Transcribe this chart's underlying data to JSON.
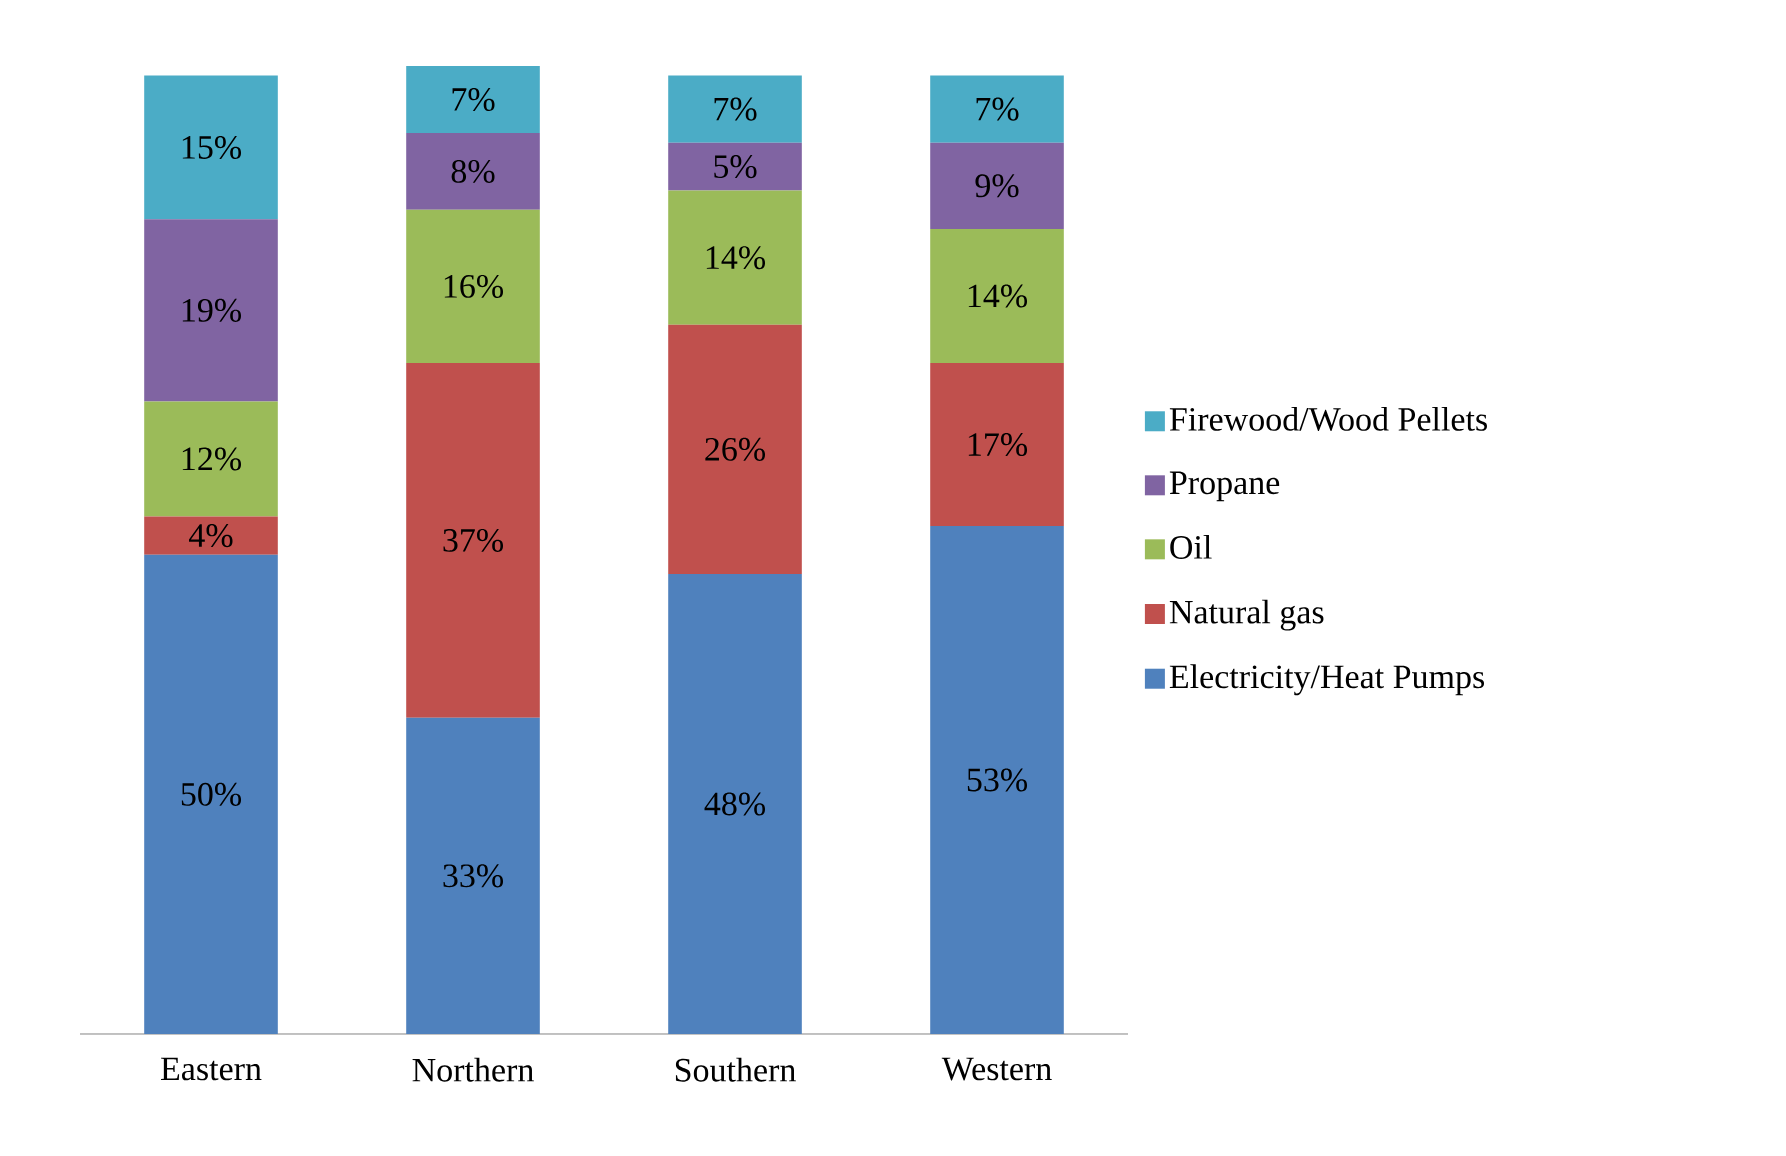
{
  "chart_data": {
    "type": "bar",
    "stacked": true,
    "legend": "right",
    "categories": [
      "Eastern",
      "Northern",
      "Southern",
      "Western"
    ],
    "series": [
      {
        "name": "Electricity/Heat Pumps",
        "color": "#4f81bd",
        "values": [
          50,
          33,
          48,
          53
        ],
        "value_labels": [
          "50%",
          "33%",
          "48%",
          "53%"
        ]
      },
      {
        "name": "Natural gas",
        "color": "#c0504d",
        "values": [
          4,
          37,
          26,
          17
        ],
        "value_labels": [
          "4%",
          "37%",
          "26%",
          "17%"
        ]
      },
      {
        "name": "Oil",
        "color": "#9bbb59",
        "values": [
          12,
          16,
          14,
          14
        ],
        "value_labels": [
          "12%",
          "16%",
          "14%",
          "14%"
        ]
      },
      {
        "name": "Propane",
        "color": "#8064a2",
        "values": [
          19,
          8,
          5,
          9
        ],
        "value_labels": [
          "19%",
          "8%",
          "5%",
          "9%"
        ]
      },
      {
        "name": "Firewood/Wood Pellets",
        "color": "#4bacc6",
        "values": [
          15,
          7,
          7,
          7
        ],
        "value_labels": [
          "15%",
          "7%",
          "7%",
          "7%"
        ]
      }
    ]
  }
}
